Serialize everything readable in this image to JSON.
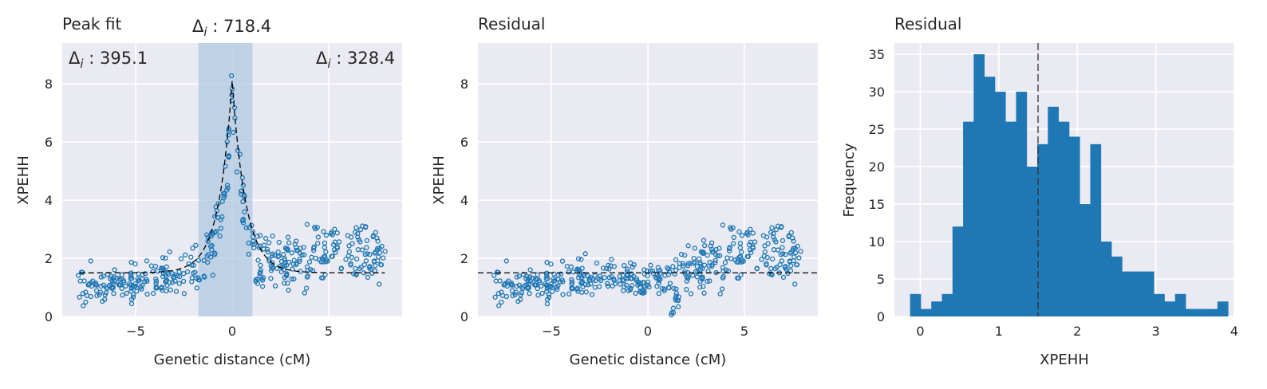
{
  "chart_data": [
    {
      "type": "scatter",
      "title": "Peak fit",
      "xlabel": "Genetic distance (cM)",
      "ylabel": "XPEHH",
      "xlim": [
        -8.8,
        8.8
      ],
      "ylim": [
        0,
        9.4
      ],
      "xticks": [
        -5,
        0,
        5
      ],
      "yticks": [
        0,
        2,
        4,
        6,
        8
      ],
      "grid": true,
      "shaded_region": {
        "x0": -1.75,
        "x1": 1.05
      },
      "annotations": {
        "left": "395.1",
        "center": "718.4",
        "right": "328.4"
      },
      "fit_curve": {
        "style": "dashed",
        "baseline": 1.5,
        "peak": 8.1,
        "center": 0.0,
        "scale": 0.7
      },
      "points": {
        "x_range": [
          -8,
          8
        ],
        "note_y_baseline": 1.5
      }
    },
    {
      "type": "scatter",
      "title": "Residual",
      "xlabel": "Genetic distance (cM)",
      "ylabel": "XPEHH",
      "xlim": [
        -8.8,
        8.8
      ],
      "ylim": [
        0,
        9.4
      ],
      "xticks": [
        -5,
        0,
        5
      ],
      "yticks": [
        0,
        2,
        4,
        6,
        8
      ],
      "grid": true,
      "hline": 1.5
    },
    {
      "type": "bar",
      "title": "Residual",
      "xlabel": "XPEHH",
      "ylabel": "Frequency",
      "xlim": [
        -0.33,
        4.0
      ],
      "ylim": [
        0,
        36.5
      ],
      "xticks": [
        0,
        1,
        2,
        3,
        4
      ],
      "yticks": [
        0,
        5,
        10,
        15,
        20,
        25,
        30,
        35
      ],
      "grid": true,
      "vline": 1.5,
      "bin_start": -0.13,
      "bin_width": 0.135,
      "values": [
        3,
        1,
        2,
        3,
        12,
        26,
        35,
        32,
        30,
        26,
        30,
        20,
        23,
        28,
        26,
        24,
        15,
        23,
        10,
        8,
        6,
        6,
        6,
        3,
        2,
        3,
        1,
        1,
        1,
        2
      ]
    }
  ],
  "colors": {
    "background": "#eaeaf2",
    "grid": "#ffffff",
    "marker": "#1f77b4",
    "shade": "#b0c8e0",
    "fit": "#000000"
  }
}
